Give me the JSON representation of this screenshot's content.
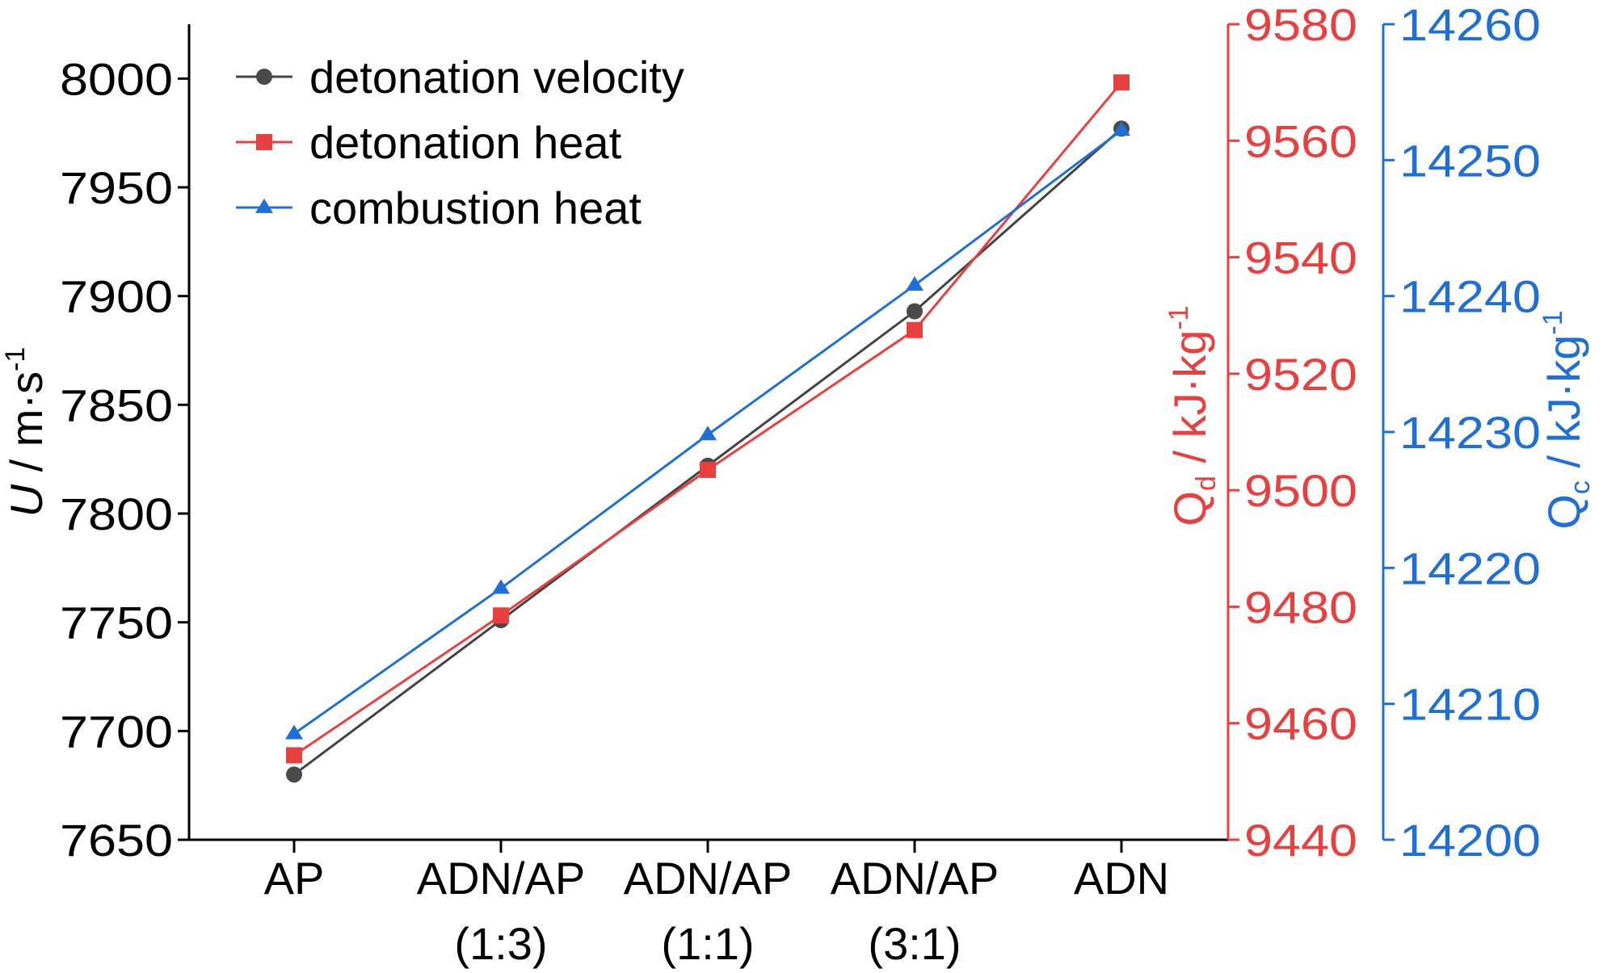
{
  "chart_data": {
    "type": "line",
    "categories": [
      "AP",
      "ADN/AP (1:3)",
      "ADN/AP (1:1)",
      "ADN/AP (3:1)",
      "ADN"
    ],
    "category_lines": [
      [
        "AP"
      ],
      [
        "ADN/AP",
        "(1:3)"
      ],
      [
        "ADN/AP",
        "(1:1)"
      ],
      [
        "ADN/AP",
        "(3:1)"
      ],
      [
        "ADN"
      ]
    ],
    "axes": {
      "left": {
        "label_italic": "U",
        "label_rest": " / m·s",
        "label_sup": "-1",
        "lim": [
          7650,
          8025
        ],
        "ticks": [
          7650,
          7700,
          7750,
          7800,
          7850,
          7900,
          7950,
          8000
        ],
        "color": "#000000"
      },
      "right1": {
        "label_main": "Q",
        "label_sub": "d",
        "label_rest": " / kJ·kg",
        "label_sup": "-1",
        "lim": [
          9440,
          9580
        ],
        "ticks": [
          9440,
          9460,
          9480,
          9500,
          9520,
          9540,
          9560,
          9580
        ],
        "color": "#e8403f"
      },
      "right2": {
        "label_main": "Q",
        "label_sub": "c",
        "label_rest": " / kJ·kg",
        "label_sup": "-1",
        "lim": [
          14200,
          14260
        ],
        "ticks": [
          14200,
          14210,
          14220,
          14230,
          14240,
          14250,
          14260
        ],
        "color": "#1f6fd8"
      }
    },
    "series": [
      {
        "name": "detonation velocity",
        "axis": "left",
        "color": "#444444",
        "marker_color": "#4a4a4a",
        "marker": "circle",
        "values": [
          7680,
          7751,
          7822,
          7893,
          7977
        ]
      },
      {
        "name": "detonation heat",
        "axis": "right1",
        "color": "#e8403f",
        "marker_color": "#e8403f",
        "marker": "square",
        "values": [
          9454.5,
          9478.5,
          9503.5,
          9527.5,
          9570
        ]
      },
      {
        "name": "combustion heat",
        "axis": "right2",
        "color": "#1f6fd8",
        "marker_color": "#1f6fd8",
        "marker": "triangle",
        "values": [
          14207.8,
          14218.5,
          14229.8,
          14240.8,
          14252.2
        ]
      }
    ],
    "grid": false,
    "legend_position": "top-left"
  }
}
